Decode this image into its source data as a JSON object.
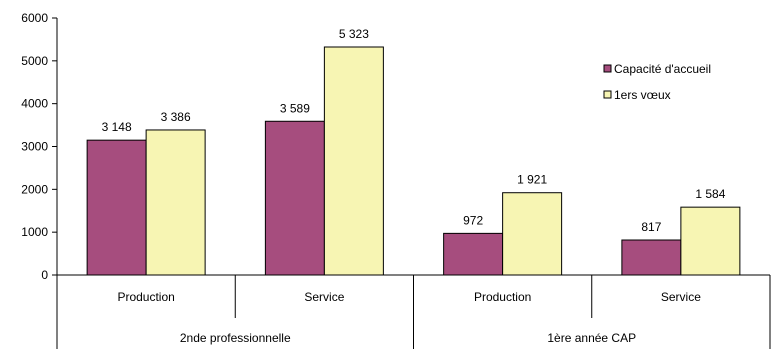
{
  "chart_data": {
    "type": "bar",
    "title": "",
    "xlabel": "",
    "ylabel": "",
    "ylim": [
      0,
      6000
    ],
    "yticks": [
      0,
      1000,
      2000,
      3000,
      4000,
      5000,
      6000
    ],
    "grid": false,
    "legend_position": "top-right",
    "groups": [
      {
        "label": "2nde professionnelle",
        "categories": [
          "Production",
          "Service"
        ]
      },
      {
        "label": "1ère année CAP",
        "categories": [
          "Production",
          "Service"
        ]
      }
    ],
    "categories": [
      "Production",
      "Service",
      "Production",
      "Service"
    ],
    "series": [
      {
        "name": "Capacité d'accueil",
        "color": "#a64d7e",
        "values": [
          3148,
          3589,
          972,
          817
        ],
        "labels": [
          "3 148",
          "3 589",
          "972",
          "817"
        ]
      },
      {
        "name": "1ers vœux",
        "color": "#f7f5b3",
        "values": [
          3386,
          5323,
          1921,
          1584
        ],
        "labels": [
          "3 386",
          "5 323",
          "1 921",
          "1 584"
        ]
      }
    ]
  }
}
